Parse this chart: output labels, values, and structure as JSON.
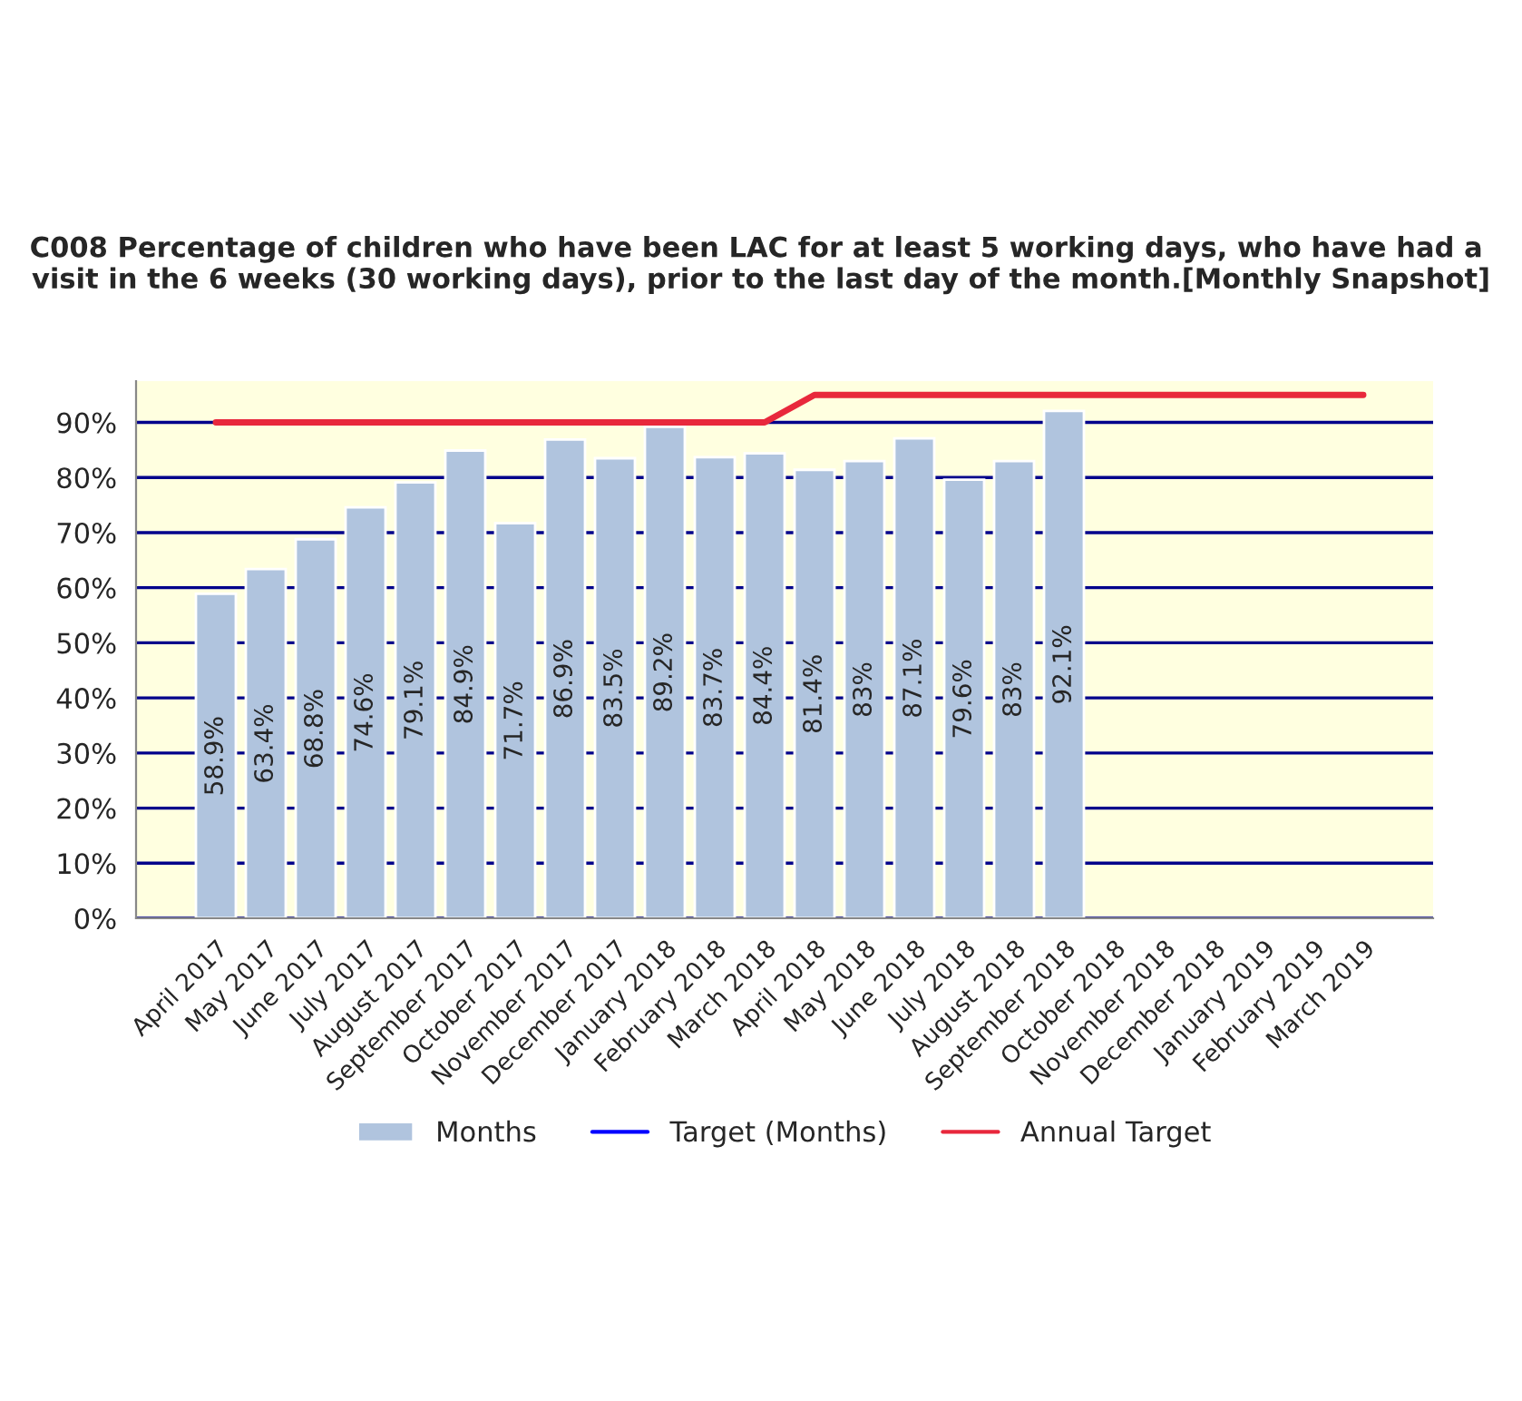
{
  "chart_data": {
    "type": "bar",
    "title": "C008 Percentage of children who have been LAC for at least 5 working days, who have had a  visit in the 6 weeks (30 working days), prior to the last day of the month.[Monthly Snapshot]",
    "categories": [
      "April 2017",
      "May 2017",
      "June 2017",
      "July 2017",
      "August 2017",
      "September 2017",
      "October 2017",
      "November 2017",
      "December 2017",
      "January 2018",
      "February 2018",
      "March 2018",
      "April 2018",
      "May 2018",
      "June 2018",
      "July 2018",
      "August 2018",
      "September 2018",
      "October 2018",
      "November 2018",
      "December 2018",
      "January 2019",
      "February 2019",
      "March 2019"
    ],
    "series": [
      {
        "name": "Months",
        "color": "#b0c4de",
        "values": [
          58.9,
          63.4,
          68.8,
          74.6,
          79.1,
          84.9,
          71.7,
          86.9,
          83.5,
          89.2,
          83.7,
          84.4,
          81.4,
          83,
          87.1,
          79.6,
          83,
          92.1,
          null,
          null,
          null,
          null,
          null,
          null
        ],
        "value_labels": [
          "58.9%",
          "63.4%",
          "68.8%",
          "74.6%",
          "79.1%",
          "84.9%",
          "71.7%",
          "86.9%",
          "83.5%",
          "89.2%",
          "83.7%",
          "84.4%",
          "81.4%",
          "83%",
          "87.1%",
          "79.6%",
          "83%",
          "92.1%",
          null,
          null,
          null,
          null,
          null,
          null
        ]
      },
      {
        "name": "Target (Months)",
        "type": "line",
        "color": "#0000ff",
        "values": [
          null,
          null,
          null,
          null,
          null,
          null,
          null,
          null,
          null,
          null,
          null,
          null,
          null,
          null,
          null,
          null,
          null,
          null,
          null,
          null,
          null,
          null,
          null,
          null
        ]
      },
      {
        "name": "Annual Target",
        "type": "line",
        "color": "#e8283c",
        "values": [
          90,
          90,
          90,
          90,
          90,
          90,
          90,
          90,
          90,
          90,
          90,
          90,
          95,
          95,
          95,
          95,
          95,
          95,
          95,
          95,
          95,
          95,
          95,
          95
        ]
      }
    ],
    "ylim": [
      0,
      97.5
    ],
    "yticks": [
      {
        "value": 0,
        "label": "0%"
      },
      {
        "value": 10,
        "label": "10%"
      },
      {
        "value": 20,
        "label": "20%"
      },
      {
        "value": 30,
        "label": "30%"
      },
      {
        "value": 40,
        "label": "40%"
      },
      {
        "value": 50,
        "label": "50%"
      },
      {
        "value": 60,
        "label": "60%"
      },
      {
        "value": 70,
        "label": "70%"
      },
      {
        "value": 80,
        "label": "80%"
      },
      {
        "value": 90,
        "label": "90%"
      }
    ],
    "grid": "y",
    "legend": "bottom"
  }
}
